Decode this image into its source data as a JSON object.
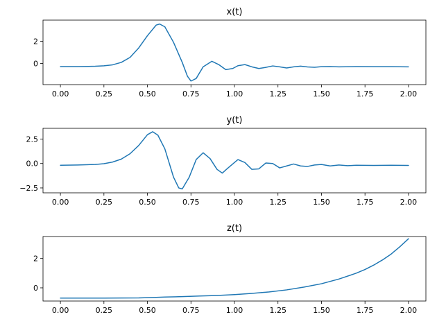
{
  "colors": {
    "series": "#1f77b4",
    "axes": "#000000",
    "background": "#ffffff"
  },
  "chart_data": [
    {
      "type": "line",
      "title": "x(t)",
      "xlabel": "",
      "ylabel": "",
      "xlim": [
        -0.1,
        2.1
      ],
      "ylim": [
        -1.9,
        3.9
      ],
      "xticks": [
        0.0,
        0.25,
        0.5,
        0.75,
        1.0,
        1.25,
        1.5,
        1.75,
        2.0
      ],
      "xtick_labels": [
        "0.00",
        "0.25",
        "0.50",
        "0.75",
        "1.00",
        "1.25",
        "1.50",
        "1.75",
        "2.00"
      ],
      "yticks": [
        0,
        2
      ],
      "ytick_labels": [
        "0",
        "2"
      ],
      "grid": false,
      "series": [
        {
          "x": [
            0.0,
            0.1,
            0.2,
            0.25,
            0.3,
            0.35,
            0.4,
            0.45,
            0.5,
            0.55,
            0.57,
            0.6,
            0.65,
            0.7,
            0.73,
            0.75,
            0.78,
            0.82,
            0.87,
            0.91,
            0.95,
            0.99,
            1.02,
            1.06,
            1.1,
            1.14,
            1.18,
            1.22,
            1.26,
            1.3,
            1.34,
            1.38,
            1.42,
            1.46,
            1.5,
            1.55,
            1.6,
            1.7,
            1.8,
            1.9,
            2.0
          ],
          "y": [
            -0.28,
            -0.28,
            -0.25,
            -0.21,
            -0.12,
            0.1,
            0.55,
            1.4,
            2.5,
            3.45,
            3.55,
            3.3,
            1.9,
            0.1,
            -1.15,
            -1.58,
            -1.35,
            -0.3,
            0.2,
            -0.1,
            -0.55,
            -0.45,
            -0.2,
            -0.1,
            -0.3,
            -0.45,
            -0.35,
            -0.22,
            -0.3,
            -0.4,
            -0.3,
            -0.24,
            -0.31,
            -0.34,
            -0.29,
            -0.28,
            -0.3,
            -0.28,
            -0.29,
            -0.29,
            -0.3
          ]
        }
      ]
    },
    {
      "type": "line",
      "title": "y(t)",
      "xlabel": "",
      "ylabel": "",
      "xlim": [
        -0.1,
        2.1
      ],
      "ylim": [
        -3.0,
        3.6
      ],
      "xticks": [
        0.0,
        0.25,
        0.5,
        0.75,
        1.0,
        1.25,
        1.5,
        1.75,
        2.0
      ],
      "xtick_labels": [
        "0.00",
        "0.25",
        "0.50",
        "0.75",
        "1.00",
        "1.25",
        "1.50",
        "1.75",
        "2.00"
      ],
      "yticks": [
        -2.5,
        0.0,
        2.5
      ],
      "ytick_labels": [
        "−2.5",
        "0.0",
        "2.5"
      ],
      "grid": false,
      "series": [
        {
          "x": [
            0.0,
            0.1,
            0.2,
            0.25,
            0.3,
            0.35,
            0.4,
            0.45,
            0.5,
            0.53,
            0.56,
            0.6,
            0.65,
            0.68,
            0.7,
            0.74,
            0.78,
            0.82,
            0.86,
            0.9,
            0.93,
            0.96,
            1.02,
            1.06,
            1.1,
            1.14,
            1.18,
            1.22,
            1.26,
            1.3,
            1.34,
            1.38,
            1.42,
            1.46,
            1.5,
            1.55,
            1.6,
            1.65,
            1.7,
            1.8,
            1.9,
            2.0
          ],
          "y": [
            -0.18,
            -0.15,
            -0.1,
            -0.02,
            0.15,
            0.45,
            1.0,
            1.85,
            2.95,
            3.25,
            2.9,
            1.5,
            -1.4,
            -2.5,
            -2.6,
            -1.4,
            0.4,
            1.1,
            0.5,
            -0.6,
            -0.98,
            -0.5,
            0.4,
            0.1,
            -0.6,
            -0.55,
            0.05,
            0.0,
            -0.45,
            -0.25,
            -0.05,
            -0.25,
            -0.3,
            -0.15,
            -0.1,
            -0.25,
            -0.15,
            -0.22,
            -0.18,
            -0.2,
            -0.18,
            -0.2
          ]
        }
      ]
    },
    {
      "type": "line",
      "title": "z(t)",
      "xlabel": "",
      "ylabel": "",
      "xlim": [
        -0.1,
        2.1
      ],
      "ylim": [
        -0.9,
        3.5
      ],
      "xticks": [
        0.0,
        0.25,
        0.5,
        0.75,
        1.0,
        1.25,
        1.5,
        1.75,
        2.0
      ],
      "xtick_labels": [
        "0.00",
        "0.25",
        "0.50",
        "0.75",
        "1.00",
        "1.25",
        "1.50",
        "1.75",
        "2.00"
      ],
      "yticks": [
        0,
        2
      ],
      "ytick_labels": [
        "0",
        "2"
      ],
      "grid": false,
      "series": [
        {
          "x": [
            0.0,
            0.25,
            0.45,
            0.5,
            0.55,
            0.6,
            0.7,
            0.8,
            0.9,
            1.0,
            1.1,
            1.2,
            1.3,
            1.4,
            1.5,
            1.6,
            1.7,
            1.75,
            1.8,
            1.85,
            1.9,
            1.95,
            2.0
          ],
          "y": [
            -0.7,
            -0.7,
            -0.69,
            -0.67,
            -0.65,
            -0.63,
            -0.6,
            -0.56,
            -0.52,
            -0.46,
            -0.38,
            -0.28,
            -0.14,
            0.05,
            0.28,
            0.6,
            1.0,
            1.25,
            1.55,
            1.9,
            2.3,
            2.8,
            3.35
          ]
        }
      ]
    }
  ]
}
